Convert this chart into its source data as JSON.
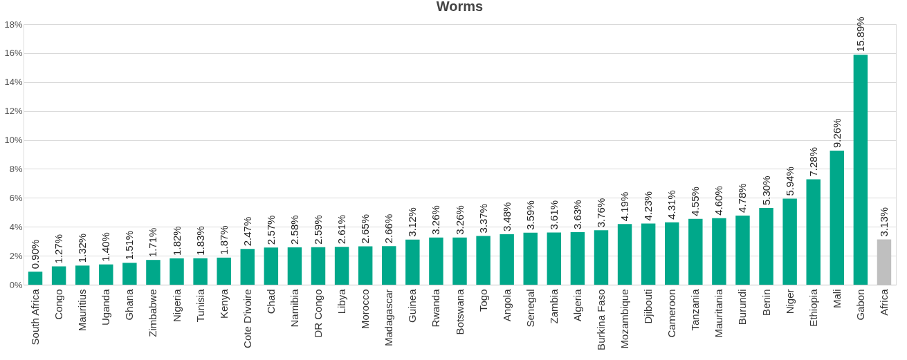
{
  "chart_data": {
    "type": "bar",
    "title": "Worms",
    "categories": [
      "South Africa",
      "Congo",
      "Mauritius",
      "Uganda",
      "Ghana",
      "Zimbabwe",
      "Nigeria",
      "Tunisia",
      "Kenya",
      "Cote D'ivoire",
      "Chad",
      "Namibia",
      "DR Congo",
      "Libya",
      "Morocco",
      "Madagascar",
      "Guinea",
      "Rwanda",
      "Botswana",
      "Togo",
      "Angola",
      "Senegal",
      "Zambia",
      "Algeria",
      "Burkina Faso",
      "Mozambique",
      "Djibouti",
      "Cameroon",
      "Tanzania",
      "Mauritania",
      "Burundi",
      "Benin",
      "Niger",
      "Ethiopia",
      "Mali",
      "Gabon",
      "Africa"
    ],
    "values": [
      0.9,
      1.27,
      1.32,
      1.4,
      1.51,
      1.71,
      1.82,
      1.83,
      1.87,
      2.47,
      2.57,
      2.58,
      2.59,
      2.61,
      2.65,
      2.66,
      3.12,
      3.26,
      3.26,
      3.37,
      3.48,
      3.59,
      3.61,
      3.63,
      3.76,
      4.19,
      4.23,
      4.31,
      4.55,
      4.6,
      4.78,
      5.3,
      5.94,
      7.28,
      9.26,
      15.89,
      3.13
    ],
    "value_labels": [
      "0.90%",
      "1.27%",
      "1.32%",
      "1.40%",
      "1.51%",
      "1.71%",
      "1.82%",
      "1.83%",
      "1.87%",
      "2.47%",
      "2.57%",
      "2.58%",
      "2.59%",
      "2.61%",
      "2.65%",
      "2.66%",
      "3.12%",
      "3.26%",
      "3.26%",
      "3.37%",
      "3.48%",
      "3.59%",
      "3.61%",
      "3.63%",
      "3.76%",
      "4.19%",
      "4.23%",
      "4.31%",
      "4.55%",
      "4.60%",
      "4.78%",
      "5.30%",
      "5.94%",
      "7.28%",
      "9.26%",
      "15.89%",
      "3.13%"
    ],
    "colors": [
      "#00a88a",
      "#00a88a",
      "#00a88a",
      "#00a88a",
      "#00a88a",
      "#00a88a",
      "#00a88a",
      "#00a88a",
      "#00a88a",
      "#00a88a",
      "#00a88a",
      "#00a88a",
      "#00a88a",
      "#00a88a",
      "#00a88a",
      "#00a88a",
      "#00a88a",
      "#00a88a",
      "#00a88a",
      "#00a88a",
      "#00a88a",
      "#00a88a",
      "#00a88a",
      "#00a88a",
      "#00a88a",
      "#00a88a",
      "#00a88a",
      "#00a88a",
      "#00a88a",
      "#00a88a",
      "#00a88a",
      "#00a88a",
      "#00a88a",
      "#00a88a",
      "#00a88a",
      "#00a88a",
      "#bfbfbf"
    ],
    "ylim": [
      0,
      18
    ],
    "yticks": [
      {
        "value": 0,
        "label": "0%"
      },
      {
        "value": 2,
        "label": "2%"
      },
      {
        "value": 4,
        "label": "4%"
      },
      {
        "value": 6,
        "label": "6%"
      },
      {
        "value": 8,
        "label": "8%"
      },
      {
        "value": 10,
        "label": "10%"
      },
      {
        "value": 12,
        "label": "12%"
      },
      {
        "value": 14,
        "label": "14%"
      },
      {
        "value": 16,
        "label": "16%"
      },
      {
        "value": 18,
        "label": "18%"
      }
    ],
    "grid": "y",
    "legend": false
  }
}
